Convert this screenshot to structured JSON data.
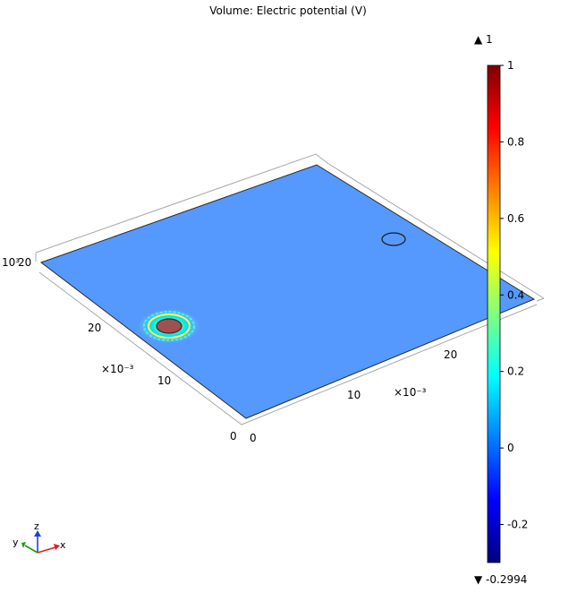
{
  "chart_data": {
    "type": "heatmap",
    "title": "Volume: Electric potential (V)",
    "view": "3d-isometric",
    "axes": {
      "x": {
        "ticks": [
          "0",
          "10",
          "20"
        ],
        "scale_label": "×10⁻³"
      },
      "y": {
        "ticks": [
          "0",
          "10",
          "20"
        ],
        "scale_label": "×10⁻³"
      },
      "z": {
        "ticks": [
          "10³",
          "20"
        ]
      }
    },
    "colorbar": {
      "colormap": "rainbow",
      "ticks": [
        "1",
        "0.8",
        "0.6",
        "0.4",
        "0.2",
        "0",
        "-0.2"
      ],
      "max_label": "▲ 1",
      "min_label": "▼ -0.2994",
      "max": 1,
      "min": -0.2994,
      "colors": [
        "#7f0000",
        "#ff0000",
        "#ff7f00",
        "#ffff00",
        "#7fff7f",
        "#00ffff",
        "#007fff",
        "#0000ff",
        "#00007f"
      ]
    },
    "plate_color": "#5599ff",
    "features": [
      {
        "name": "hot-electrode",
        "value": 1,
        "color": "#a05050"
      },
      {
        "name": "outline-hole",
        "value": 0
      }
    ]
  },
  "triad": {
    "x": "x",
    "y": "y",
    "z": "z",
    "x_color": "#e02020",
    "y_color": "#10a010",
    "z_color": "#2040e0"
  }
}
